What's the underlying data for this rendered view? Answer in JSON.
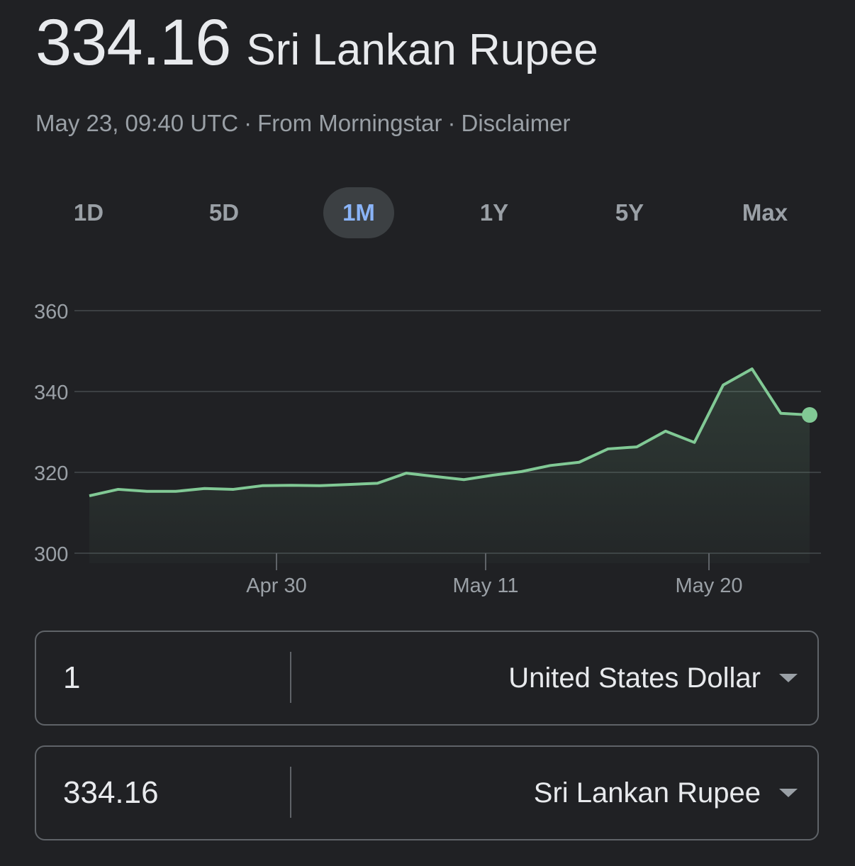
{
  "header": {
    "value": "334.16",
    "currency": "Sri Lankan Rupee",
    "timestamp": "May 23, 09:40 UTC",
    "separator": "·",
    "source": "From Morningstar",
    "disclaimer": "Disclaimer"
  },
  "tabs": [
    {
      "label": "1D"
    },
    {
      "label": "5D"
    },
    {
      "label": "1M",
      "active": true
    },
    {
      "label": "1Y"
    },
    {
      "label": "5Y"
    },
    {
      "label": "Max"
    }
  ],
  "chart_data": {
    "type": "area",
    "title": "",
    "xlabel": "",
    "ylabel": "",
    "ylim": [
      300,
      360
    ],
    "yticks": [
      "360",
      "340",
      "320",
      "300"
    ],
    "ytick_values": [
      360,
      340,
      320,
      300
    ],
    "xticks": [
      "Apr 30",
      "May 11",
      "May 20"
    ],
    "grid": true,
    "line_color": "#81c995",
    "series": [
      {
        "values": [
          314.2,
          315.8,
          315.3,
          315.3,
          316.0,
          315.8,
          316.7,
          316.8,
          316.7,
          317.0,
          317.3,
          319.8,
          319.0,
          318.2,
          319.3,
          320.2,
          321.7,
          322.5,
          325.8,
          326.3,
          330.2,
          327.4,
          341.6,
          345.6,
          334.6,
          334.2
        ]
      }
    ]
  },
  "converter": {
    "from": {
      "amount": "1",
      "currency": "United States Dollar"
    },
    "to": {
      "amount": "334.16",
      "currency": "Sri Lankan Rupee"
    }
  }
}
